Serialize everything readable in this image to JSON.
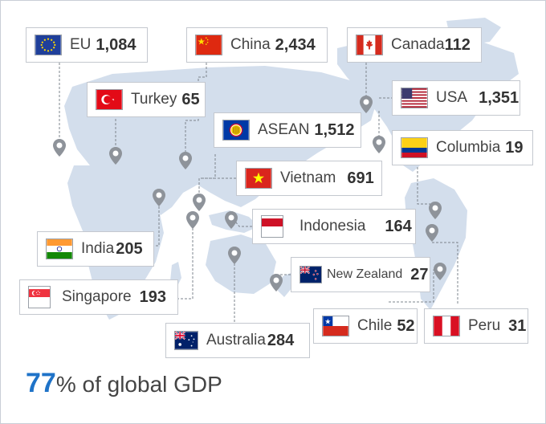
{
  "countries": [
    {
      "id": "eu",
      "name": "EU",
      "value": "1,084",
      "flag": "eu-flag-icon"
    },
    {
      "id": "china",
      "name": "China",
      "value": "2,434",
      "flag": "china-flag-icon"
    },
    {
      "id": "canada",
      "name": "Canada",
      "value": "112",
      "flag": "canada-flag-icon"
    },
    {
      "id": "turkey",
      "name": "Turkey",
      "value": "65",
      "flag": "turkey-flag-icon"
    },
    {
      "id": "usa",
      "name": "USA",
      "value": "1,351",
      "flag": "usa-flag-icon"
    },
    {
      "id": "asean",
      "name": "ASEAN",
      "value": "1,512",
      "flag": "asean-flag-icon"
    },
    {
      "id": "columbia",
      "name": "Columbia",
      "value": "19",
      "flag": "colombia-flag-icon"
    },
    {
      "id": "vietnam",
      "name": "Vietnam",
      "value": "691",
      "flag": "vietnam-flag-icon"
    },
    {
      "id": "indonesia",
      "name": "Indonesia",
      "value": "164",
      "flag": "indonesia-flag-icon"
    },
    {
      "id": "india",
      "name": "India",
      "value": "205",
      "flag": "india-flag-icon"
    },
    {
      "id": "newzealand",
      "name": "New Zealand",
      "value": "27",
      "flag": "new-zealand-flag-icon"
    },
    {
      "id": "singapore",
      "name": "Singapore",
      "value": "193",
      "flag": "singapore-flag-icon"
    },
    {
      "id": "chile",
      "name": "Chile",
      "value": "52",
      "flag": "chile-flag-icon"
    },
    {
      "id": "peru",
      "name": "Peru",
      "value": "31",
      "flag": "peru-flag-icon"
    },
    {
      "id": "australia",
      "name": "Australia",
      "value": "284",
      "flag": "australia-flag-icon"
    }
  ],
  "footer": {
    "percent": "77",
    "text": "% of global GDP"
  },
  "colors": {
    "map": "#d3deec",
    "accent": "#1f73c8",
    "pin": "#8e939a",
    "connector": "#7e848c"
  }
}
